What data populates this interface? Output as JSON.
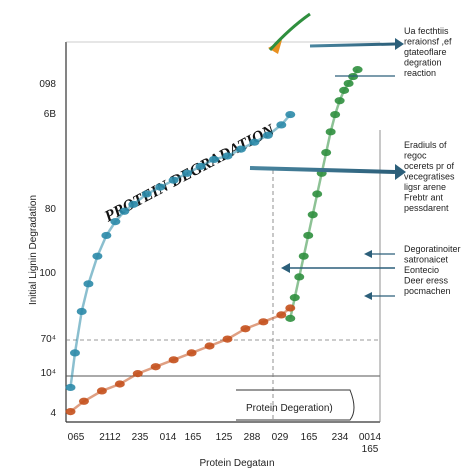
{
  "chart_data": {
    "type": "scatter",
    "title": "",
    "overlay_title": "PROTEIN DEGRADATION",
    "xlabel": "Protein Degataın",
    "ylabel": "Initial Lignin Degradation",
    "inner_label": "Protein Degeration)",
    "x_ticks": [
      "065",
      "2112",
      "235",
      "014",
      "165",
      "125",
      "288",
      "029",
      "165",
      "234",
      "0014"
    ],
    "x_tick_sub": {
      "index": 10,
      "text": "165"
    },
    "y_ticks": [
      "4",
      "10⁴",
      "70⁴",
      "100",
      "80",
      "6B",
      "098"
    ],
    "legend_position": "right",
    "annotations": [
      "Ua fecthtiis\nreraionsf ,ef\ngtateoflare\ndegration\nreaction",
      "Eradiuls of\nregoc\nocerets pr of\nvecegratises\nligsr arene\nFrebtr ant\npessdarent",
      "Degoratinoiter\nsatronaicet\nEontecio\nDeer eress\npocmachen"
    ],
    "series": [
      {
        "name": "",
        "color": "#2b8aa8",
        "x": [
          0.1,
          0.2,
          0.35,
          0.5,
          0.7,
          0.9,
          1.1,
          1.3,
          1.5,
          1.8,
          2.1,
          2.4,
          2.7,
          3.0,
          3.3,
          3.6,
          3.9,
          4.2,
          4.5,
          4.8,
          5.0
        ],
        "y": [
          1.0,
          2.0,
          3.2,
          4.0,
          4.8,
          5.4,
          5.8,
          6.1,
          6.3,
          6.6,
          6.8,
          7.0,
          7.2,
          7.4,
          7.6,
          7.7,
          7.9,
          8.1,
          8.3,
          8.6,
          8.9
        ]
      },
      {
        "name": "",
        "color": "#2f8f3e",
        "x": [
          5.0,
          5.1,
          5.2,
          5.3,
          5.4,
          5.5,
          5.6,
          5.7,
          5.8,
          5.9,
          6.0,
          6.1,
          6.2,
          6.3,
          6.4,
          6.5
        ],
        "y": [
          3.0,
          3.6,
          4.2,
          4.8,
          5.4,
          6.0,
          6.6,
          7.2,
          7.8,
          8.4,
          8.9,
          9.3,
          9.6,
          9.8,
          10.0,
          10.2
        ]
      },
      {
        "name": "",
        "color": "#c4501c",
        "x": [
          0.1,
          0.4,
          0.8,
          1.2,
          1.6,
          2.0,
          2.4,
          2.8,
          3.2,
          3.6,
          4.0,
          4.4,
          4.8,
          5.0
        ],
        "y": [
          0.3,
          0.6,
          0.9,
          1.1,
          1.4,
          1.6,
          1.8,
          2.0,
          2.2,
          2.4,
          2.7,
          2.9,
          3.1,
          3.3
        ]
      }
    ],
    "xlim": [
      0,
      7
    ],
    "ylim": [
      0,
      11
    ],
    "grid": false
  }
}
